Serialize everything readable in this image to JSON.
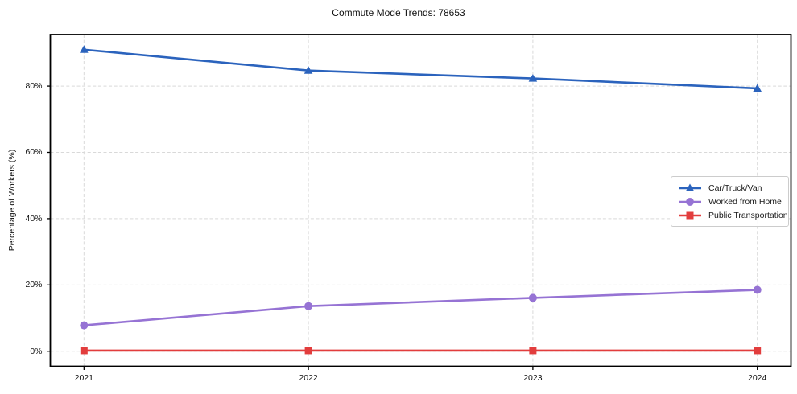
{
  "figure": {
    "background": "#ffffff",
    "axis_color": "#000000",
    "grid_color": "#d9d9d9",
    "text_color": "#111111"
  },
  "chart_data": {
    "type": "line",
    "title": "Commute Mode Trends: 78653",
    "xlabel": "",
    "ylabel": "Percentage of Workers (%)",
    "categories": [
      "2021",
      "2022",
      "2023",
      "2024"
    ],
    "series": [
      {
        "name": "Car/Truck/Van",
        "values": [
          91.0,
          84.7,
          82.3,
          79.3
        ],
        "color": "#2b63bd",
        "marker": "triangle"
      },
      {
        "name": "Worked from Home",
        "values": [
          7.8,
          13.6,
          16.1,
          18.5
        ],
        "color": "#9673d4",
        "marker": "circle"
      },
      {
        "name": "Public Transportation",
        "values": [
          0.2,
          0.2,
          0.2,
          0.2
        ],
        "color": "#e23d3d",
        "marker": "square"
      }
    ],
    "y_ticks": [
      0,
      20,
      40,
      60,
      80
    ],
    "y_tick_suffix": "%",
    "ylim": [
      -4.55,
      95.55
    ],
    "grid": true,
    "grid_dashed": true,
    "legend_position": "center right"
  }
}
